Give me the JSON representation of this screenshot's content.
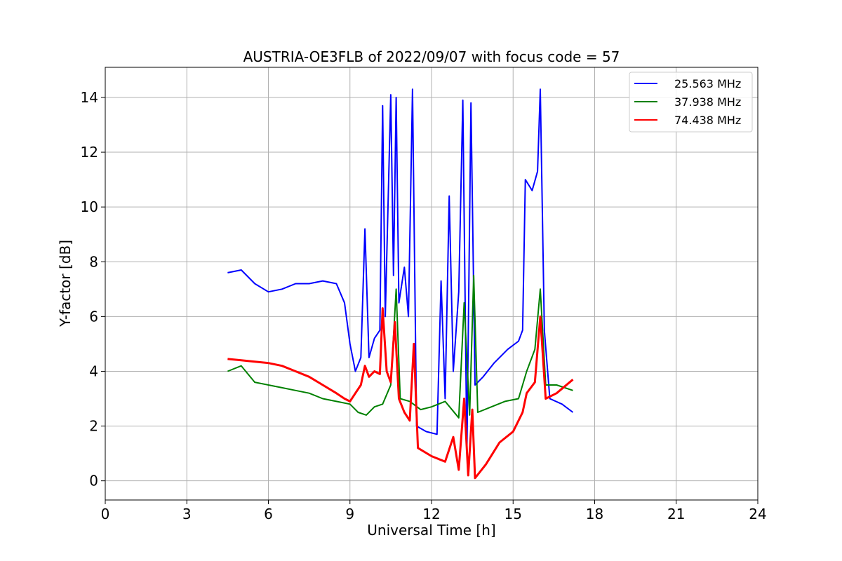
{
  "chart_data": {
    "type": "line",
    "title": "AUSTRIA-OE3FLB of 2022/09/07 with focus code = 57",
    "xlabel": "Universal Time [h]",
    "ylabel": "Y-factor [dB]",
    "xlim": [
      0,
      24
    ],
    "ylim": [
      -0.7,
      15.1
    ],
    "xticks": [
      "0",
      "3",
      "6",
      "9",
      "12",
      "15",
      "18",
      "21",
      "24"
    ],
    "yticks": [
      "0",
      "2",
      "4",
      "6",
      "8",
      "10",
      "12",
      "14"
    ],
    "grid": true,
    "legend_position": "top-right",
    "series": [
      {
        "name": "25.563 MHz",
        "color": "#0000ff",
        "points": [
          [
            4.5,
            7.6
          ],
          [
            5.0,
            7.7
          ],
          [
            5.5,
            7.2
          ],
          [
            6.0,
            6.9
          ],
          [
            6.5,
            7.0
          ],
          [
            7.0,
            7.2
          ],
          [
            7.5,
            7.2
          ],
          [
            8.0,
            7.3
          ],
          [
            8.5,
            7.2
          ],
          [
            8.8,
            6.5
          ],
          [
            9.0,
            5.0
          ],
          [
            9.2,
            4.0
          ],
          [
            9.4,
            4.5
          ],
          [
            9.55,
            9.2
          ],
          [
            9.7,
            4.5
          ],
          [
            9.9,
            5.2
          ],
          [
            10.1,
            5.5
          ],
          [
            10.2,
            13.7
          ],
          [
            10.3,
            6.0
          ],
          [
            10.5,
            14.1
          ],
          [
            10.6,
            7.5
          ],
          [
            10.7,
            14.0
          ],
          [
            10.8,
            6.5
          ],
          [
            11.0,
            7.8
          ],
          [
            11.15,
            6.0
          ],
          [
            11.3,
            14.3
          ],
          [
            11.45,
            2.0
          ],
          [
            11.8,
            1.8
          ],
          [
            12.2,
            1.7
          ],
          [
            12.35,
            7.3
          ],
          [
            12.5,
            3.0
          ],
          [
            12.65,
            10.4
          ],
          [
            12.8,
            4.0
          ],
          [
            13.0,
            6.9
          ],
          [
            13.15,
            13.9
          ],
          [
            13.3,
            1.0
          ],
          [
            13.45,
            13.8
          ],
          [
            13.6,
            3.5
          ],
          [
            13.9,
            3.8
          ],
          [
            14.3,
            4.3
          ],
          [
            14.8,
            4.8
          ],
          [
            15.2,
            5.1
          ],
          [
            15.35,
            5.5
          ],
          [
            15.45,
            11.0
          ],
          [
            15.7,
            10.6
          ],
          [
            15.9,
            11.3
          ],
          [
            16.0,
            14.3
          ],
          [
            16.15,
            5.5
          ],
          [
            16.35,
            3.0
          ],
          [
            16.8,
            2.8
          ],
          [
            17.2,
            2.5
          ]
        ]
      },
      {
        "name": "37.938 MHz",
        "color": "#008000",
        "points": [
          [
            4.5,
            4.0
          ],
          [
            5.0,
            4.2
          ],
          [
            5.5,
            3.6
          ],
          [
            6.0,
            3.5
          ],
          [
            6.5,
            3.4
          ],
          [
            7.0,
            3.3
          ],
          [
            7.5,
            3.2
          ],
          [
            8.0,
            3.0
          ],
          [
            8.5,
            2.9
          ],
          [
            9.0,
            2.8
          ],
          [
            9.3,
            2.5
          ],
          [
            9.6,
            2.4
          ],
          [
            9.9,
            2.7
          ],
          [
            10.2,
            2.8
          ],
          [
            10.5,
            3.5
          ],
          [
            10.7,
            7.0
          ],
          [
            10.85,
            3.0
          ],
          [
            11.2,
            2.9
          ],
          [
            11.6,
            2.6
          ],
          [
            12.0,
            2.7
          ],
          [
            12.5,
            2.9
          ],
          [
            13.0,
            2.3
          ],
          [
            13.2,
            6.5
          ],
          [
            13.4,
            2.4
          ],
          [
            13.55,
            7.5
          ],
          [
            13.7,
            2.5
          ],
          [
            14.2,
            2.7
          ],
          [
            14.7,
            2.9
          ],
          [
            15.2,
            3.0
          ],
          [
            15.5,
            4.0
          ],
          [
            15.8,
            4.8
          ],
          [
            16.0,
            7.0
          ],
          [
            16.2,
            3.5
          ],
          [
            16.6,
            3.5
          ],
          [
            17.2,
            3.3
          ]
        ]
      },
      {
        "name": "74.438 MHz",
        "color": "#ff0000",
        "points": [
          [
            4.5,
            4.45
          ],
          [
            5.0,
            4.4
          ],
          [
            5.5,
            4.35
          ],
          [
            6.0,
            4.3
          ],
          [
            6.5,
            4.2
          ],
          [
            7.0,
            4.0
          ],
          [
            7.5,
            3.8
          ],
          [
            8.0,
            3.5
          ],
          [
            8.5,
            3.2
          ],
          [
            8.8,
            3.0
          ],
          [
            9.0,
            2.9
          ],
          [
            9.2,
            3.2
          ],
          [
            9.4,
            3.5
          ],
          [
            9.55,
            4.2
          ],
          [
            9.7,
            3.8
          ],
          [
            9.9,
            4.0
          ],
          [
            10.1,
            3.9
          ],
          [
            10.2,
            6.3
          ],
          [
            10.35,
            4.0
          ],
          [
            10.5,
            3.6
          ],
          [
            10.65,
            5.8
          ],
          [
            10.8,
            3.0
          ],
          [
            11.0,
            2.5
          ],
          [
            11.2,
            2.2
          ],
          [
            11.35,
            5.0
          ],
          [
            11.5,
            1.2
          ],
          [
            12.0,
            0.9
          ],
          [
            12.5,
            0.7
          ],
          [
            12.8,
            1.6
          ],
          [
            13.0,
            0.4
          ],
          [
            13.2,
            3.0
          ],
          [
            13.35,
            0.2
          ],
          [
            13.5,
            2.6
          ],
          [
            13.6,
            0.1
          ],
          [
            14.0,
            0.6
          ],
          [
            14.5,
            1.4
          ],
          [
            15.0,
            1.8
          ],
          [
            15.35,
            2.5
          ],
          [
            15.5,
            3.2
          ],
          [
            15.8,
            3.6
          ],
          [
            16.0,
            6.0
          ],
          [
            16.2,
            3.0
          ],
          [
            16.6,
            3.2
          ],
          [
            17.2,
            3.7
          ]
        ]
      }
    ]
  }
}
